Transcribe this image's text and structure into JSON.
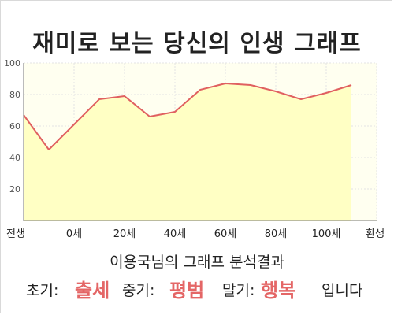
{
  "title": "재미로 보는 당신의 인생 그래프",
  "subtitle": "이용국님의 그래프 분석결과",
  "summary": {
    "early_label": "초기:",
    "early_value": "출세",
    "mid_label": "중기:",
    "mid_value": "평범",
    "late_label": "말기:",
    "late_value": "행복",
    "ending": "입니다"
  },
  "colors": {
    "area_fill": "#ffffc4",
    "plot_bg": "#fffff0",
    "line": "#e06060",
    "highlight": "#e46666"
  },
  "chart_data": {
    "type": "area",
    "title": "재미로 보는 당신의 인생 그래프",
    "x_tick_labels": [
      "전생",
      "0세",
      "20세",
      "40세",
      "60세",
      "80세",
      "100세",
      "환생"
    ],
    "y_ticks": [
      20,
      40,
      60,
      80,
      100
    ],
    "ylim": [
      0,
      100
    ],
    "grid": true,
    "series": [
      {
        "x": [
          "전생",
          "0세",
          "10세",
          "20세",
          "30세",
          "40세",
          "50세",
          "60세",
          "70세",
          "80세",
          "90세",
          "100세",
          "110세",
          "환생"
        ],
        "values": [
          67,
          45,
          61,
          77,
          79,
          66,
          69,
          83,
          87,
          86,
          82,
          77,
          81,
          86
        ]
      }
    ]
  }
}
